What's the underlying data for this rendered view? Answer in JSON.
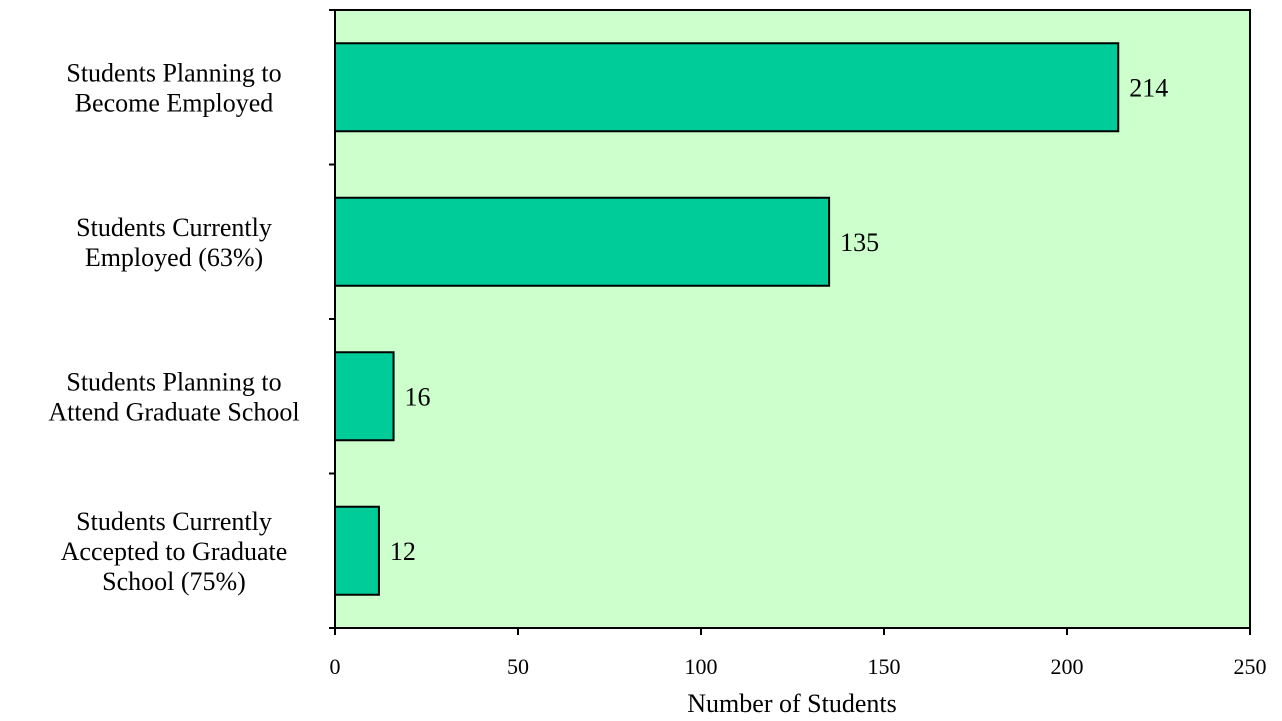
{
  "colors": {
    "plot_background": "#ccffcc",
    "bar_fill": "#00cc99",
    "bar_stroke": "#000000",
    "axis": "#000000"
  },
  "chart_data": {
    "type": "bar",
    "orientation": "horizontal",
    "categories": [
      [
        "Students Planning to",
        "Become Employed"
      ],
      [
        "Students Currently",
        "Employed (63%)"
      ],
      [
        "Students Planning to",
        "Attend Graduate School"
      ],
      [
        "Students Currently",
        "Accepted to Graduate",
        "School (75%)"
      ]
    ],
    "values": [
      214,
      135,
      16,
      12
    ],
    "value_labels": [
      "214",
      "135",
      "16",
      "12"
    ],
    "xlabel": "Number of Students",
    "ylabel": "",
    "title": "",
    "xlim": [
      0,
      250
    ],
    "xticks": [
      0,
      50,
      100,
      150,
      200,
      250
    ],
    "xtick_labels": [
      "0",
      "50",
      "100",
      "150",
      "200",
      "250"
    ],
    "grid": false,
    "legend": "none"
  }
}
